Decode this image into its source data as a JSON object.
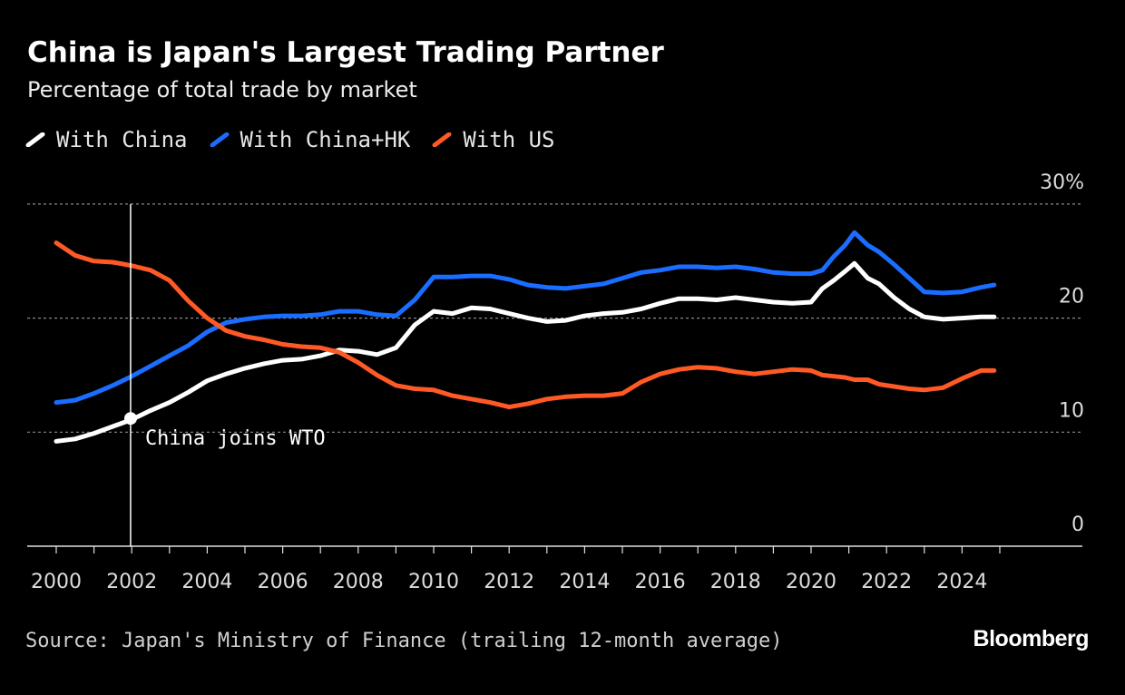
{
  "chart_data": {
    "type": "line",
    "title": "China is Japan's Largest Trading Partner",
    "subtitle": "Percentage of total trade by market",
    "xlabel": "",
    "ylabel": "",
    "xlim": [
      1999.6,
      2027.5
    ],
    "ylim": [
      0,
      30
    ],
    "y_ticks": [
      0,
      10,
      20,
      30
    ],
    "y_tick_labels": [
      "0",
      "10",
      "20",
      "30%"
    ],
    "x_ticks": [
      2000,
      2002,
      2004,
      2006,
      2008,
      2010,
      2012,
      2014,
      2016,
      2018,
      2020,
      2022,
      2024
    ],
    "x_tick_labels": [
      "2000",
      "2002",
      "2004",
      "2006",
      "2008",
      "2010",
      "2012",
      "2014",
      "2016",
      "2018",
      "2020",
      "2022",
      "2024"
    ],
    "grid": true,
    "legend_placement": "top-left",
    "series": [
      {
        "name": "With China",
        "color": "#ffffff",
        "x": [
          2000.0,
          2000.5,
          2001.0,
          2001.5,
          2002.0,
          2002.5,
          2003.0,
          2003.5,
          2004.0,
          2004.5,
          2005.0,
          2005.5,
          2006.0,
          2006.5,
          2007.0,
          2007.5,
          2008.0,
          2008.5,
          2009.0,
          2009.5,
          2010.0,
          2010.5,
          2011.0,
          2011.5,
          2012.0,
          2012.5,
          2013.0,
          2013.5,
          2014.0,
          2014.5,
          2015.0,
          2015.5,
          2016.0,
          2016.5,
          2017.0,
          2017.5,
          2018.0,
          2018.5,
          2019.0,
          2019.5,
          2020.0,
          2020.3,
          2020.6,
          2020.9,
          2021.15,
          2021.5,
          2021.8,
          2022.2,
          2022.6,
          2023.0,
          2023.5,
          2024.0,
          2024.5,
          2024.85
        ],
        "values": [
          9.2,
          9.4,
          9.9,
          10.5,
          11.1,
          11.9,
          12.6,
          13.5,
          14.5,
          15.1,
          15.6,
          16.0,
          16.3,
          16.4,
          16.7,
          17.2,
          17.1,
          16.8,
          17.4,
          19.4,
          20.6,
          20.4,
          20.9,
          20.8,
          20.4,
          20.0,
          19.7,
          19.8,
          20.2,
          20.4,
          20.5,
          20.8,
          21.3,
          21.7,
          21.7,
          21.6,
          21.8,
          21.6,
          21.4,
          21.3,
          21.4,
          22.6,
          23.3,
          24.1,
          24.8,
          23.5,
          23.0,
          21.8,
          20.8,
          20.1,
          19.9,
          20.0,
          20.1,
          20.1
        ]
      },
      {
        "name": "With China+HK",
        "color": "#1a6dff",
        "x": [
          2000.0,
          2000.5,
          2001.0,
          2001.5,
          2002.0,
          2002.5,
          2003.0,
          2003.5,
          2004.0,
          2004.5,
          2005.0,
          2005.5,
          2006.0,
          2006.5,
          2007.0,
          2007.5,
          2008.0,
          2008.5,
          2009.0,
          2009.5,
          2010.0,
          2010.5,
          2011.0,
          2011.5,
          2012.0,
          2012.5,
          2013.0,
          2013.5,
          2014.0,
          2014.5,
          2015.0,
          2015.5,
          2016.0,
          2016.5,
          2017.0,
          2017.5,
          2018.0,
          2018.5,
          2019.0,
          2019.5,
          2020.0,
          2020.3,
          2020.6,
          2020.9,
          2021.15,
          2021.5,
          2021.8,
          2022.2,
          2022.6,
          2023.0,
          2023.5,
          2024.0,
          2024.5,
          2024.85
        ],
        "values": [
          12.6,
          12.8,
          13.4,
          14.1,
          14.9,
          15.8,
          16.7,
          17.6,
          18.8,
          19.6,
          19.9,
          20.1,
          20.2,
          20.2,
          20.3,
          20.6,
          20.6,
          20.3,
          20.2,
          21.6,
          23.6,
          23.6,
          23.7,
          23.7,
          23.4,
          22.9,
          22.7,
          22.6,
          22.8,
          23.0,
          23.5,
          24.0,
          24.2,
          24.5,
          24.5,
          24.4,
          24.5,
          24.3,
          24.0,
          23.9,
          23.9,
          24.2,
          25.4,
          26.4,
          27.5,
          26.4,
          25.8,
          24.7,
          23.5,
          22.3,
          22.2,
          22.3,
          22.7,
          22.9
        ]
      },
      {
        "name": "With US",
        "color": "#ff5a26",
        "x": [
          2000.0,
          2000.5,
          2001.0,
          2001.5,
          2002.0,
          2002.5,
          2003.0,
          2003.5,
          2004.0,
          2004.5,
          2005.0,
          2005.5,
          2006.0,
          2006.5,
          2007.0,
          2007.5,
          2008.0,
          2008.5,
          2009.0,
          2009.5,
          2010.0,
          2010.5,
          2011.0,
          2011.5,
          2012.0,
          2012.5,
          2013.0,
          2013.5,
          2014.0,
          2014.5,
          2015.0,
          2015.5,
          2016.0,
          2016.5,
          2017.0,
          2017.5,
          2018.0,
          2018.5,
          2019.0,
          2019.5,
          2020.0,
          2020.3,
          2020.6,
          2020.9,
          2021.15,
          2021.5,
          2021.8,
          2022.2,
          2022.6,
          2023.0,
          2023.5,
          2024.0,
          2024.5,
          2024.85
        ],
        "values": [
          26.6,
          25.5,
          25.0,
          24.9,
          24.6,
          24.2,
          23.3,
          21.5,
          20.0,
          18.9,
          18.4,
          18.1,
          17.7,
          17.5,
          17.4,
          17.0,
          16.1,
          15.0,
          14.1,
          13.8,
          13.7,
          13.2,
          12.9,
          12.6,
          12.2,
          12.5,
          12.9,
          13.1,
          13.2,
          13.2,
          13.4,
          14.4,
          15.1,
          15.5,
          15.7,
          15.6,
          15.3,
          15.1,
          15.3,
          15.5,
          15.4,
          15.0,
          14.9,
          14.8,
          14.6,
          14.6,
          14.2,
          14.0,
          13.8,
          13.7,
          13.9,
          14.7,
          15.4,
          15.4
        ]
      }
    ],
    "annotations": [
      {
        "text": "China joins WTO",
        "x": 2001.97,
        "y": 11.2
      }
    ],
    "source": "Source: Japan's Ministry of Finance (trailing 12-month average)",
    "brand": "Bloomberg"
  }
}
